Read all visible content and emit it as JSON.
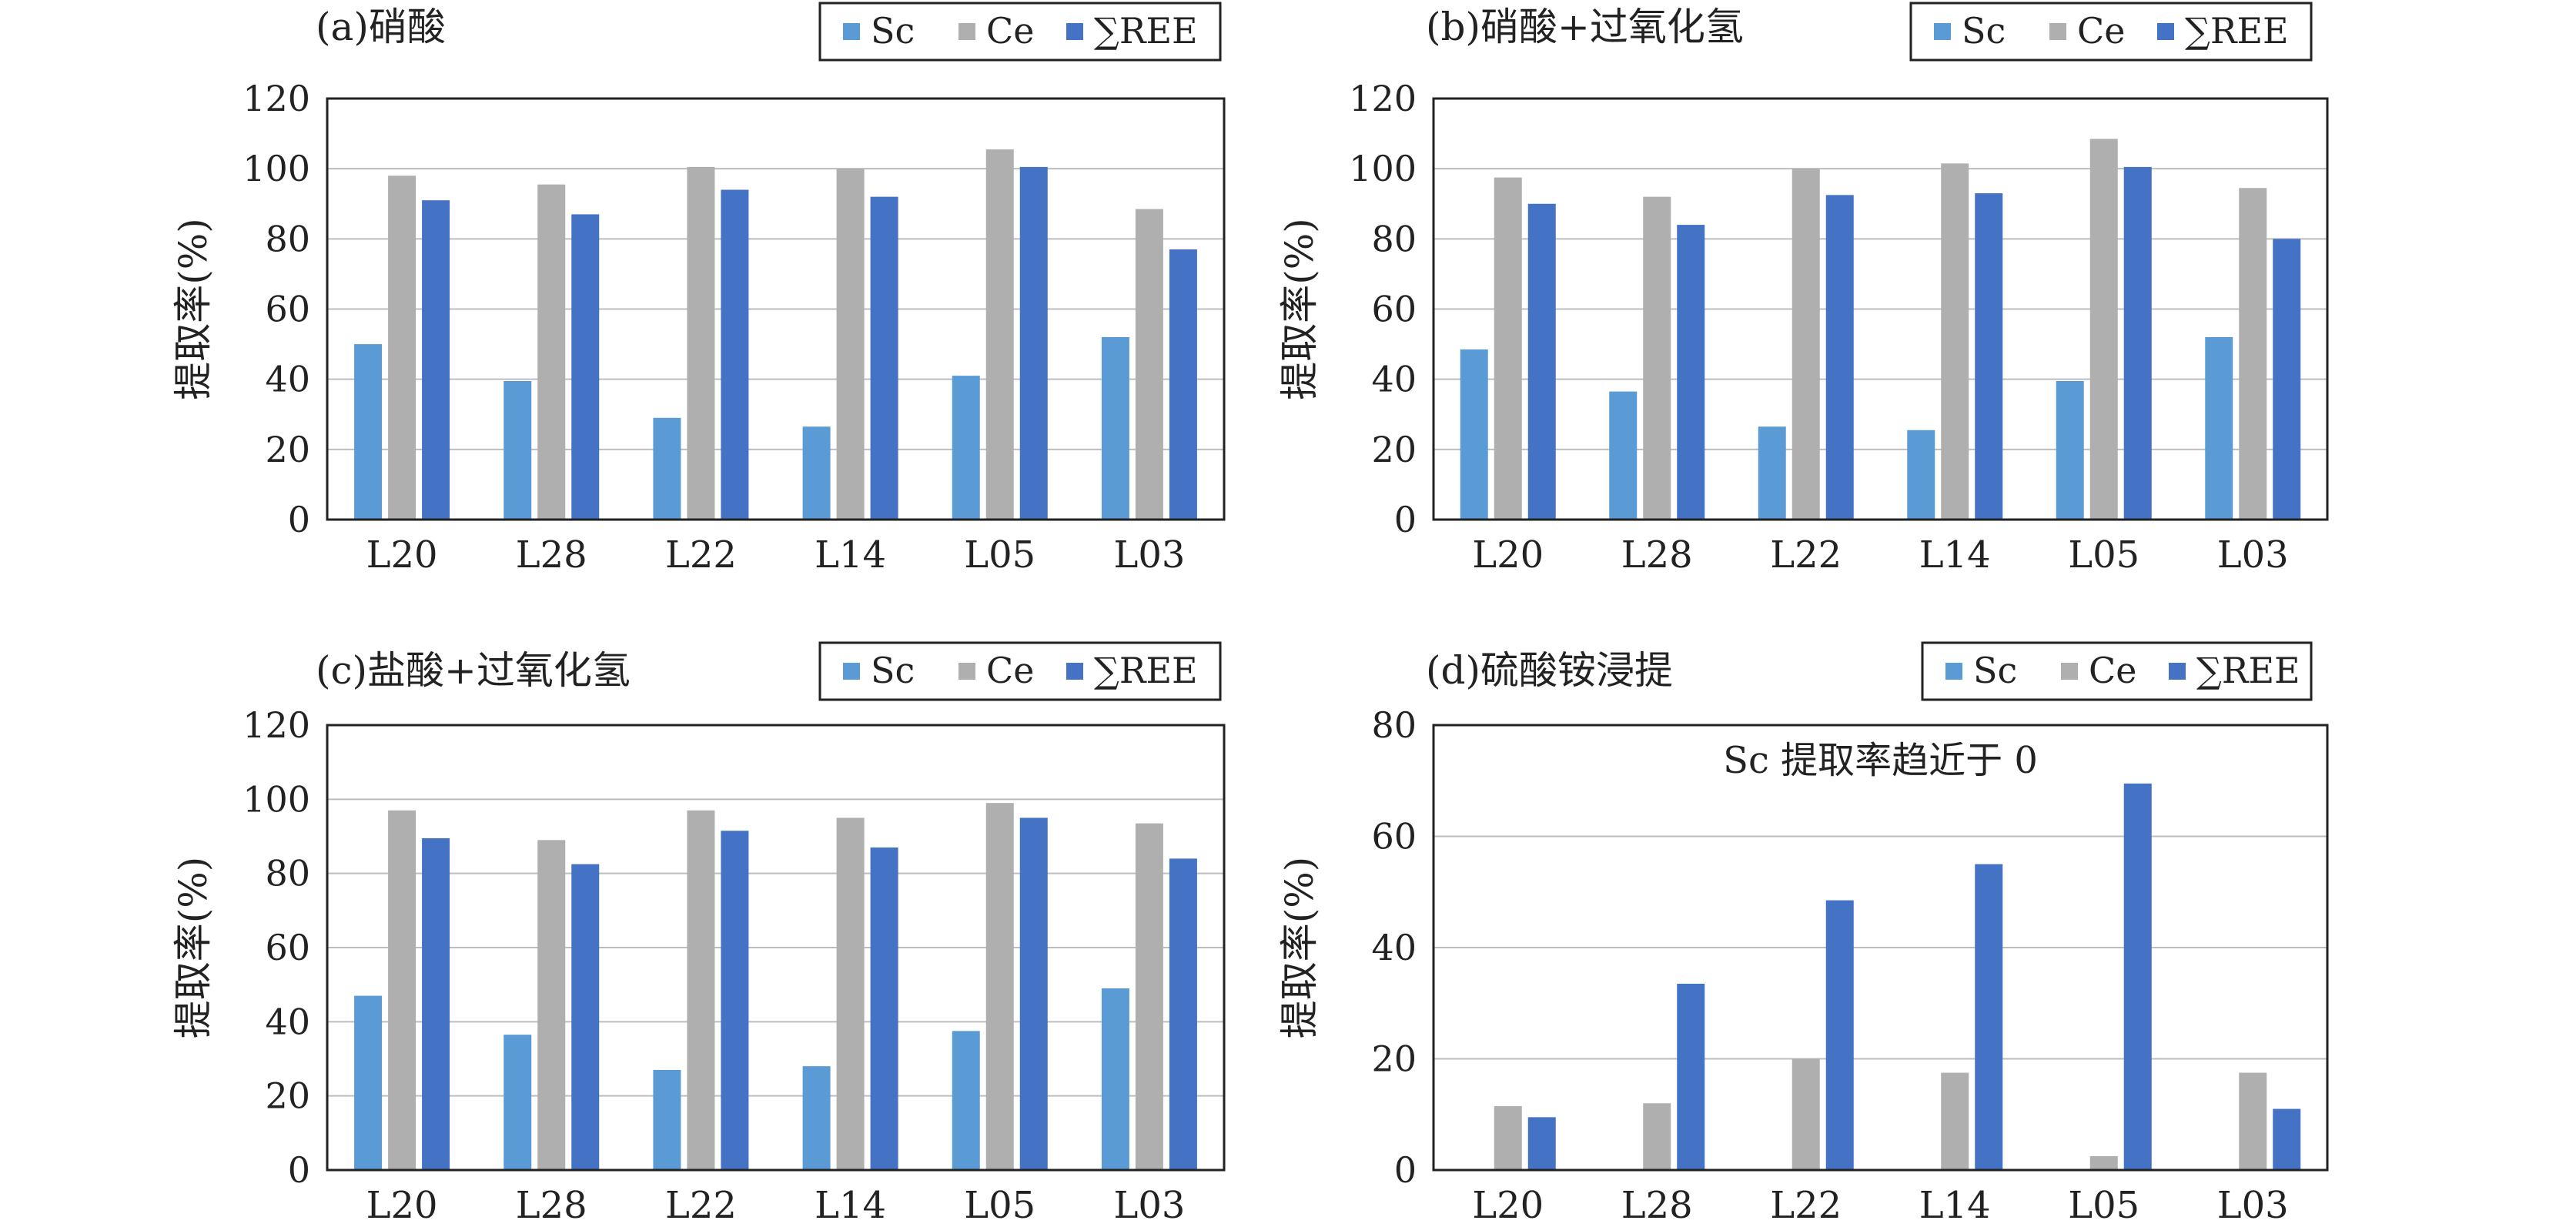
{
  "colors": {
    "Sc": "#5b9bd5",
    "Ce": "#afafaf",
    "REE": "#4472c4",
    "grid": "#bdbdbd",
    "frame": "#222222"
  },
  "chart_data": [
    {
      "type": "bar",
      "title": "(a)硝酸",
      "ylabel": "提取率(%)",
      "ylim": [
        0,
        120
      ],
      "yticks": [
        0,
        20,
        40,
        60,
        80,
        100,
        120
      ],
      "grid": true,
      "legend": "top-right",
      "categories": [
        "L20",
        "L28",
        "L22",
        "L14",
        "L05",
        "L03"
      ],
      "series": [
        {
          "name": "Sc",
          "values": [
            50,
            39.5,
            29,
            26.5,
            41,
            52
          ]
        },
        {
          "name": "Ce",
          "values": [
            98,
            95.5,
            100.5,
            100,
            105.5,
            88.5
          ]
        },
        {
          "name": "∑REE",
          "values": [
            91,
            87,
            94,
            92,
            100.5,
            77
          ]
        }
      ]
    },
    {
      "type": "bar",
      "title": "(b)硝酸+过氧化氢",
      "ylabel": "提取率(%)",
      "ylim": [
        0,
        120
      ],
      "yticks": [
        0,
        20,
        40,
        60,
        80,
        100,
        120
      ],
      "grid": true,
      "legend": "top-right",
      "categories": [
        "L20",
        "L28",
        "L22",
        "L14",
        "L05",
        "L03"
      ],
      "series": [
        {
          "name": "Sc",
          "values": [
            48.5,
            36.5,
            26.5,
            25.5,
            39.5,
            52
          ]
        },
        {
          "name": "Ce",
          "values": [
            97.5,
            92,
            100,
            101.5,
            108.5,
            94.5
          ]
        },
        {
          "name": "∑REE",
          "values": [
            90,
            84,
            92.5,
            93,
            100.5,
            80
          ]
        }
      ]
    },
    {
      "type": "bar",
      "title": "(c)盐酸+过氧化氢",
      "ylabel": "提取率(%)",
      "ylim": [
        0,
        120
      ],
      "yticks": [
        0,
        20,
        40,
        60,
        80,
        100,
        120
      ],
      "grid": true,
      "legend": "top-right",
      "categories": [
        "L20",
        "L28",
        "L22",
        "L14",
        "L05",
        "L03"
      ],
      "series": [
        {
          "name": "Sc",
          "values": [
            47,
            36.5,
            27,
            28,
            37.5,
            49
          ]
        },
        {
          "name": "Ce",
          "values": [
            97,
            89,
            97,
            95,
            99,
            93.5
          ]
        },
        {
          "name": "∑REE",
          "values": [
            89.5,
            82.5,
            91.5,
            87,
            95,
            84
          ]
        }
      ]
    },
    {
      "type": "bar",
      "title": "(d)硫酸铵浸提",
      "ylabel": "提取率(%)",
      "ylim": [
        0,
        80
      ],
      "yticks": [
        0,
        20,
        40,
        60,
        80
      ],
      "grid": true,
      "legend": "top-right",
      "annotation": "Sc 提取率趋近于 0",
      "categories": [
        "L20",
        "L28",
        "L22",
        "L14",
        "L05",
        "L03"
      ],
      "series": [
        {
          "name": "Sc",
          "values": [
            0,
            0.2,
            0,
            0,
            0,
            0.1
          ]
        },
        {
          "name": "Ce",
          "values": [
            11.5,
            12,
            20,
            17.5,
            2.5,
            17.5
          ]
        },
        {
          "name": "∑REE",
          "values": [
            9.5,
            33.5,
            48.5,
            55,
            69.5,
            11
          ]
        }
      ]
    }
  ]
}
